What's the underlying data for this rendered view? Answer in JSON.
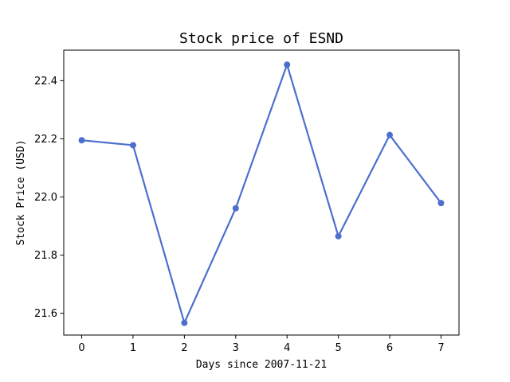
{
  "chart_data": {
    "type": "line",
    "title": "Stock price of ESND",
    "xlabel": "Days since 2007-11-21",
    "ylabel": "Stock Price (USD)",
    "x": [
      0,
      1,
      2,
      3,
      4,
      5,
      6,
      7
    ],
    "series": [
      {
        "values": [
          22.195,
          22.178,
          21.567,
          21.961,
          22.455,
          21.865,
          22.213,
          21.979
        ]
      }
    ],
    "xlim": [
      -0.35,
      7.35
    ],
    "ylim": [
      21.525,
      22.505
    ],
    "xticks": [
      0,
      1,
      2,
      3,
      4,
      5,
      6,
      7
    ],
    "yticks": [
      "21.6",
      "21.8",
      "22.0",
      "22.2",
      "22.4"
    ],
    "grid": false,
    "line_color": "#4c6fce"
  }
}
